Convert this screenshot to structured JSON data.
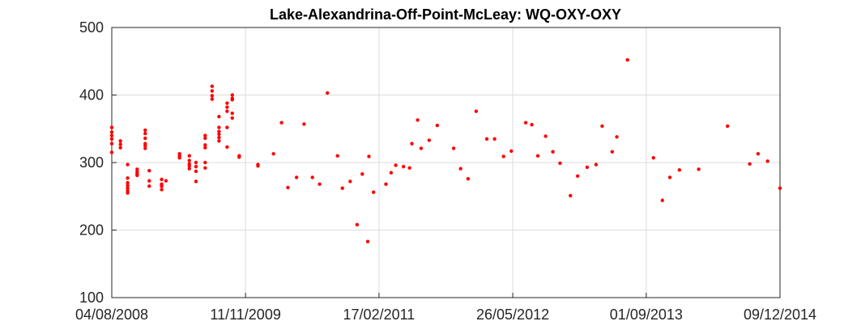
{
  "chart_data": {
    "type": "scatter",
    "title": "Lake-Alexandrina-Off-Point-McLeay: WQ-OXY-OXY",
    "xlabel": "",
    "ylabel": "",
    "x_axis": "date",
    "xlim": [
      "2008-08-04",
      "2014-12-09"
    ],
    "ylim": [
      100,
      500
    ],
    "yticks": [
      100,
      200,
      300,
      400,
      500
    ],
    "xtick_labels": [
      "04/08/2008",
      "11/11/2009",
      "17/02/2011",
      "26/05/2012",
      "01/09/2013",
      "09/12/2014"
    ],
    "xtick_dates": [
      "2008-08-04",
      "2009-11-11",
      "2011-02-17",
      "2012-05-26",
      "2013-09-01",
      "2014-12-09"
    ],
    "grid": true,
    "marker_color": "#ff0000",
    "points": [
      [
        "2008-08-04",
        352
      ],
      [
        "2008-08-04",
        345
      ],
      [
        "2008-08-04",
        340
      ],
      [
        "2008-08-04",
        335
      ],
      [
        "2008-08-04",
        328
      ],
      [
        "2008-08-04",
        315
      ],
      [
        "2008-09-03",
        332
      ],
      [
        "2008-09-03",
        327
      ],
      [
        "2008-09-03",
        322
      ],
      [
        "2008-09-28",
        297
      ],
      [
        "2008-09-28",
        277
      ],
      [
        "2008-09-28",
        270
      ],
      [
        "2008-09-28",
        266
      ],
      [
        "2008-09-28",
        262
      ],
      [
        "2008-09-28",
        258
      ],
      [
        "2008-09-28",
        255
      ],
      [
        "2008-10-31",
        290
      ],
      [
        "2008-10-31",
        286
      ],
      [
        "2008-10-31",
        283
      ],
      [
        "2008-10-31",
        281
      ],
      [
        "2008-11-28",
        348
      ],
      [
        "2008-11-28",
        343
      ],
      [
        "2008-11-28",
        336
      ],
      [
        "2008-11-28",
        328
      ],
      [
        "2008-11-28",
        325
      ],
      [
        "2008-11-28",
        321
      ],
      [
        "2008-12-12",
        288
      ],
      [
        "2008-12-12",
        273
      ],
      [
        "2008-12-12",
        265
      ],
      [
        "2009-01-24",
        275
      ],
      [
        "2009-01-24",
        268
      ],
      [
        "2009-01-24",
        265
      ],
      [
        "2009-01-24",
        260
      ],
      [
        "2009-02-08",
        273
      ],
      [
        "2009-03-27",
        313
      ],
      [
        "2009-03-27",
        310
      ],
      [
        "2009-03-27",
        307
      ],
      [
        "2009-04-30",
        310
      ],
      [
        "2009-04-30",
        303
      ],
      [
        "2009-04-30",
        298
      ],
      [
        "2009-04-30",
        295
      ],
      [
        "2009-04-30",
        291
      ],
      [
        "2009-05-23",
        300
      ],
      [
        "2009-05-23",
        294
      ],
      [
        "2009-05-23",
        287
      ],
      [
        "2009-05-23",
        272
      ],
      [
        "2009-06-24",
        340
      ],
      [
        "2009-06-24",
        336
      ],
      [
        "2009-06-24",
        326
      ],
      [
        "2009-06-24",
        322
      ],
      [
        "2009-06-24",
        300
      ],
      [
        "2009-06-24",
        292
      ],
      [
        "2009-07-18",
        413
      ],
      [
        "2009-07-18",
        406
      ],
      [
        "2009-07-18",
        399
      ],
      [
        "2009-07-18",
        394
      ],
      [
        "2009-08-11",
        368
      ],
      [
        "2009-08-11",
        352
      ],
      [
        "2009-08-11",
        346
      ],
      [
        "2009-08-11",
        342
      ],
      [
        "2009-08-11",
        337
      ],
      [
        "2009-08-11",
        332
      ],
      [
        "2009-09-08",
        388
      ],
      [
        "2009-09-08",
        382
      ],
      [
        "2009-09-08",
        376
      ],
      [
        "2009-09-08",
        352
      ],
      [
        "2009-09-08",
        323
      ],
      [
        "2009-09-26",
        400
      ],
      [
        "2009-09-26",
        395
      ],
      [
        "2009-09-26",
        393
      ],
      [
        "2009-09-26",
        373
      ],
      [
        "2009-09-26",
        366
      ],
      [
        "2009-10-20",
        310
      ],
      [
        "2009-10-20",
        308
      ],
      [
        "2009-12-24",
        297
      ],
      [
        "2009-12-24",
        295
      ],
      [
        "2010-02-16",
        313
      ],
      [
        "2010-03-16",
        359
      ],
      [
        "2010-04-07",
        263
      ],
      [
        "2010-05-07",
        278
      ],
      [
        "2010-06-02",
        357
      ],
      [
        "2010-07-01",
        278
      ],
      [
        "2010-07-26",
        268
      ],
      [
        "2010-08-22",
        403
      ],
      [
        "2010-09-26",
        310
      ],
      [
        "2010-10-13",
        262
      ],
      [
        "2010-11-09",
        272
      ],
      [
        "2010-12-03",
        208
      ],
      [
        "2010-12-21",
        283
      ],
      [
        "2011-01-09",
        183
      ],
      [
        "2011-01-13",
        309
      ],
      [
        "2011-01-29",
        256
      ],
      [
        "2011-03-13",
        268
      ],
      [
        "2011-03-31",
        285
      ],
      [
        "2011-04-16",
        296
      ],
      [
        "2011-05-13",
        294
      ],
      [
        "2011-06-03",
        292
      ],
      [
        "2011-06-11",
        328
      ],
      [
        "2011-07-01",
        363
      ],
      [
        "2011-07-13",
        321
      ],
      [
        "2011-08-10",
        333
      ],
      [
        "2011-09-07",
        355
      ],
      [
        "2011-11-03",
        321
      ],
      [
        "2011-11-27",
        291
      ],
      [
        "2011-12-23",
        276
      ],
      [
        "2012-01-20",
        376
      ],
      [
        "2012-02-26",
        335
      ],
      [
        "2012-03-24",
        335
      ],
      [
        "2012-04-24",
        309
      ],
      [
        "2012-05-21",
        317
      ],
      [
        "2012-07-10",
        359
      ],
      [
        "2012-07-31",
        356
      ],
      [
        "2012-08-21",
        310
      ],
      [
        "2012-09-17",
        339
      ],
      [
        "2012-10-12",
        316
      ],
      [
        "2012-11-06",
        299
      ],
      [
        "2012-12-12",
        251
      ],
      [
        "2013-01-06",
        280
      ],
      [
        "2013-02-08",
        293
      ],
      [
        "2013-03-11",
        297
      ],
      [
        "2013-04-01",
        354
      ],
      [
        "2013-05-06",
        316
      ],
      [
        "2013-05-22",
        338
      ],
      [
        "2013-06-28",
        452
      ],
      [
        "2013-09-26",
        307
      ],
      [
        "2013-10-27",
        244
      ],
      [
        "2013-11-22",
        278
      ],
      [
        "2013-12-25",
        289
      ],
      [
        "2014-03-02",
        290
      ],
      [
        "2014-06-10",
        354
      ],
      [
        "2014-08-26",
        298
      ],
      [
        "2014-09-24",
        313
      ],
      [
        "2014-10-27",
        302
      ],
      [
        "2014-12-09",
        262
      ]
    ]
  }
}
